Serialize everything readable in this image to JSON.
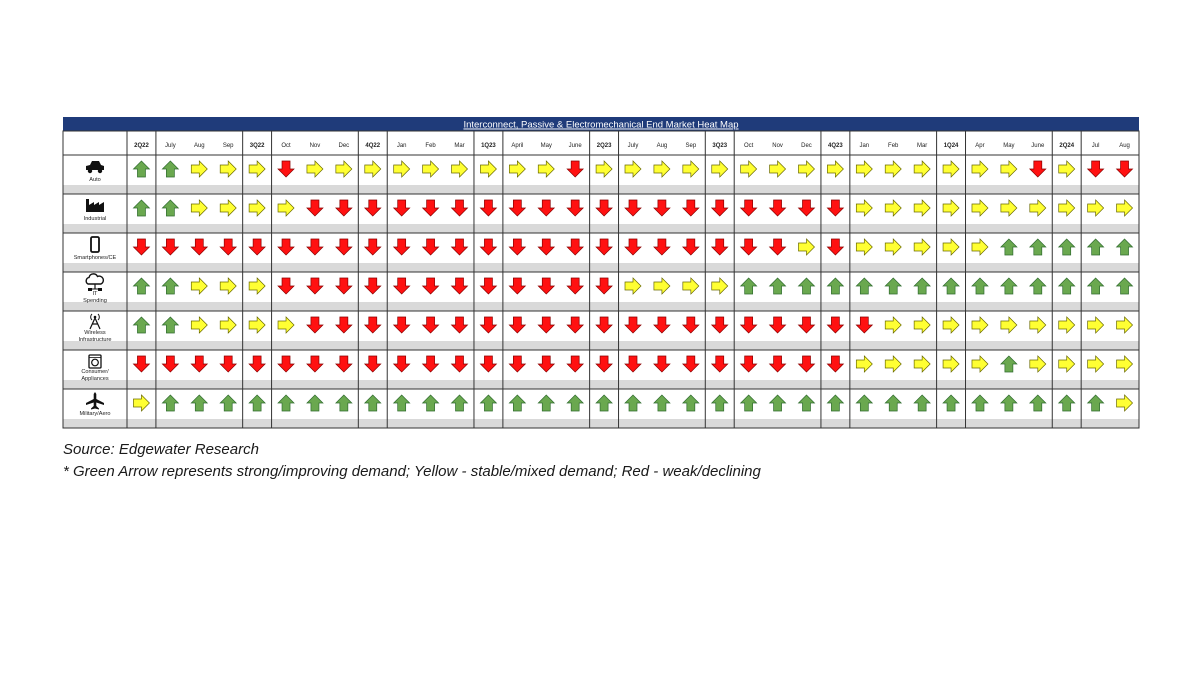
{
  "chart_data": {
    "type": "heatmap",
    "title": "Interconnect, Passive & Electromechanical End Market Heat Map",
    "columns": [
      "2Q22",
      "July",
      "Aug",
      "Sep",
      "3Q22",
      "Oct",
      "Nov",
      "Dec",
      "4Q22",
      "Jan",
      "Feb",
      "Mar",
      "1Q23",
      "April",
      "May",
      "June",
      "2Q23",
      "July",
      "Aug",
      "Sep",
      "3Q23",
      "Oct",
      "Nov",
      "Dec",
      "4Q23",
      "Jan",
      "Feb",
      "Mar",
      "1Q24",
      "Apr",
      "May",
      "June",
      "2Q24",
      "Jul",
      "Aug"
    ],
    "quarter_columns": [
      "2Q22",
      "3Q22",
      "4Q22",
      "1Q23",
      "2Q23",
      "3Q23",
      "4Q23",
      "1Q24",
      "2Q24"
    ],
    "legend": {
      "G": {
        "meaning": "strong/improving demand",
        "color": "#6aa84f",
        "direction": "up"
      },
      "Y": {
        "meaning": "stable/mixed demand",
        "color": "#ffff33",
        "direction": "right"
      },
      "R": {
        "meaning": "weak/declining",
        "color": "#ff1111",
        "direction": "down"
      }
    },
    "rows": [
      {
        "label": "Auto",
        "icon": "car-icon",
        "values": [
          "G",
          "G",
          "Y",
          "Y",
          "Y",
          "R",
          "Y",
          "Y",
          "Y",
          "Y",
          "Y",
          "Y",
          "Y",
          "Y",
          "Y",
          "R",
          "Y",
          "Y",
          "Y",
          "Y",
          "Y",
          "Y",
          "Y",
          "Y",
          "Y",
          "Y",
          "Y",
          "Y",
          "Y",
          "Y",
          "Y",
          "R",
          "Y",
          "R",
          "R"
        ]
      },
      {
        "label": "Industrial",
        "icon": "factory-icon",
        "values": [
          "G",
          "G",
          "Y",
          "Y",
          "Y",
          "Y",
          "R",
          "R",
          "R",
          "R",
          "R",
          "R",
          "R",
          "R",
          "R",
          "R",
          "R",
          "R",
          "R",
          "R",
          "R",
          "R",
          "R",
          "R",
          "R",
          "Y",
          "Y",
          "Y",
          "Y",
          "Y",
          "Y",
          "Y",
          "Y",
          "Y",
          "Y"
        ]
      },
      {
        "label": "Smartphones/CE",
        "icon": "smartphone-icon",
        "values": [
          "R",
          "R",
          "R",
          "R",
          "R",
          "R",
          "R",
          "R",
          "R",
          "R",
          "R",
          "R",
          "R",
          "R",
          "R",
          "R",
          "R",
          "R",
          "R",
          "R",
          "R",
          "R",
          "R",
          "Y",
          "R",
          "Y",
          "Y",
          "Y",
          "Y",
          "Y",
          "G",
          "G",
          "G",
          "G",
          "G"
        ]
      },
      {
        "label": "IT Spending",
        "icon": "cloud-network-icon",
        "values": [
          "G",
          "G",
          "Y",
          "Y",
          "Y",
          "R",
          "R",
          "R",
          "R",
          "R",
          "R",
          "R",
          "R",
          "R",
          "R",
          "R",
          "R",
          "Y",
          "Y",
          "Y",
          "Y",
          "G",
          "G",
          "G",
          "G",
          "G",
          "G",
          "G",
          "G",
          "G",
          "G",
          "G",
          "G",
          "G",
          "G"
        ]
      },
      {
        "label": "Wireless Infrastructure",
        "icon": "antenna-icon",
        "values": [
          "G",
          "G",
          "Y",
          "Y",
          "Y",
          "Y",
          "R",
          "R",
          "R",
          "R",
          "R",
          "R",
          "R",
          "R",
          "R",
          "R",
          "R",
          "R",
          "R",
          "R",
          "R",
          "R",
          "R",
          "R",
          "R",
          "R",
          "Y",
          "Y",
          "Y",
          "Y",
          "Y",
          "Y",
          "Y",
          "Y",
          "Y"
        ]
      },
      {
        "label": "Consumer/ Appliances",
        "icon": "washing-machine-icon",
        "values": [
          "R",
          "R",
          "R",
          "R",
          "R",
          "R",
          "R",
          "R",
          "R",
          "R",
          "R",
          "R",
          "R",
          "R",
          "R",
          "R",
          "R",
          "R",
          "R",
          "R",
          "R",
          "R",
          "R",
          "R",
          "R",
          "Y",
          "Y",
          "Y",
          "Y",
          "Y",
          "G",
          "Y",
          "Y",
          "Y",
          "Y"
        ]
      },
      {
        "label": "Military/Aero",
        "icon": "airplane-icon",
        "values": [
          "Y",
          "G",
          "G",
          "G",
          "G",
          "G",
          "G",
          "G",
          "G",
          "G",
          "G",
          "G",
          "G",
          "G",
          "G",
          "G",
          "G",
          "G",
          "G",
          "G",
          "G",
          "G",
          "G",
          "G",
          "G",
          "G",
          "G",
          "G",
          "G",
          "G",
          "G",
          "G",
          "G",
          "G",
          "Y"
        ]
      }
    ]
  },
  "notes": {
    "source": "Source: Edgewater Research",
    "legend_text": "* Green Arrow represents strong/improving demand; Yellow - stable/mixed demand; Red - weak/declining"
  }
}
